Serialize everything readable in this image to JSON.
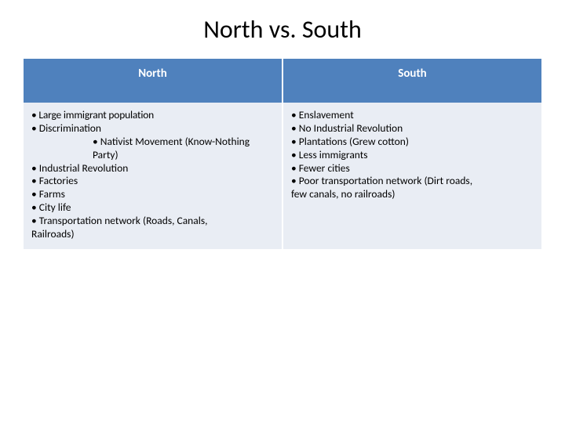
{
  "title": "North vs. South",
  "colors": {
    "header_bg": "#4f81bd",
    "header_text": "#ffffff",
    "body_bg": "#e9edf4",
    "body_text": "#000000",
    "page_bg": "#ffffff",
    "divider": "#ffffff"
  },
  "typography": {
    "title_fontsize": 32,
    "header_fontsize": 15,
    "body_fontsize": 13.5,
    "font_family": "Calibri"
  },
  "table": {
    "type": "table",
    "columns": [
      {
        "label": "North"
      },
      {
        "label": "South"
      }
    ],
    "north": {
      "b1": "• Large immigrant population",
      "b2": "•  Discrimination",
      "b2_sub1": "•   Nativist Movement (Know-Nothing",
      "b2_sub2": "Party)",
      "b3": "•   Industrial Revolution",
      "b4": "•   Factories",
      "b5": "•   Farms",
      "b6": "•   City life",
      "b7": "•   Transportation network (Roads, Canals,",
      "b7_cont": "Railroads)"
    },
    "south": {
      "b1": "•   Enslavement",
      "b2": "•   No Industrial Revolution",
      "b3": "•   Plantations (Grew cotton)",
      "b4": "•   Less immigrants",
      "b5": "•   Fewer cities",
      "b6": "•   Poor transportation network (Dirt roads,",
      "b6_cont": "few canals, no railroads)"
    }
  }
}
